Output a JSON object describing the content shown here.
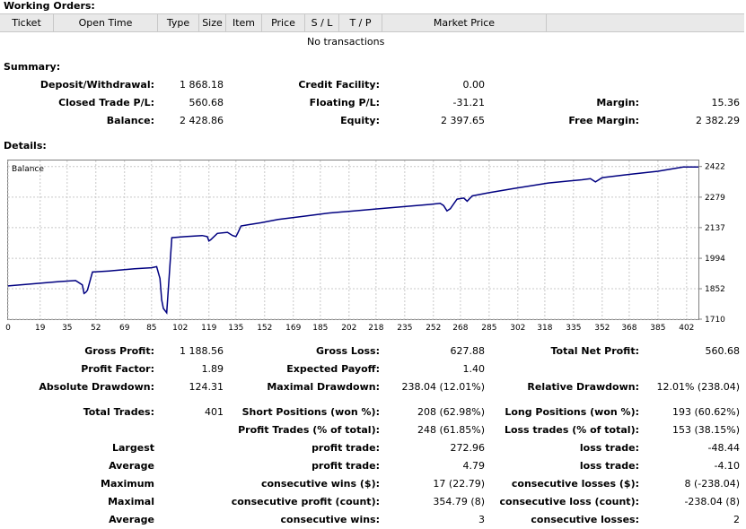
{
  "working_orders": {
    "title": "Working Orders:",
    "columns": [
      "Ticket",
      "Open Time",
      "Type",
      "Size",
      "Item",
      "Price",
      "S / L",
      "T / P",
      "Market Price"
    ],
    "empty_text": "No transactions"
  },
  "summary": {
    "title": "Summary:",
    "deposit_label": "Deposit/Withdrawal:",
    "deposit_value": "1 868.18",
    "credit_label": "Credit Facility:",
    "credit_value": "0.00",
    "closed_pl_label": "Closed Trade P/L:",
    "closed_pl_value": "560.68",
    "floating_label": "Floating P/L:",
    "floating_value": "-31.21",
    "margin_label": "Margin:",
    "margin_value": "15.36",
    "balance_label": "Balance:",
    "balance_value": "2 428.86",
    "equity_label": "Equity:",
    "equity_value": "2 397.65",
    "free_margin_label": "Free Margin:",
    "free_margin_value": "2 382.29"
  },
  "details": {
    "title": "Details:"
  },
  "chart_data": {
    "type": "line",
    "legend": "Balance",
    "x_ticks": [
      "0",
      "19",
      "35",
      "52",
      "69",
      "85",
      "102",
      "119",
      "135",
      "152",
      "169",
      "185",
      "202",
      "218",
      "235",
      "252",
      "268",
      "285",
      "302",
      "318",
      "335",
      "352",
      "368",
      "385",
      "402"
    ],
    "y_ticks": [
      "2422",
      "2279",
      "2137",
      "1994",
      "1852",
      "1710"
    ],
    "xlim": [
      0,
      409
    ],
    "ylim": [
      1710,
      2450
    ],
    "grid": true,
    "series": [
      {
        "name": "Balance",
        "color": "#000080",
        "x": [
          0,
          15,
          30,
          40,
          44,
          45,
          46,
          47,
          50,
          60,
          75,
          85,
          88,
          90,
          91,
          92,
          94,
          97,
          105,
          115,
          118,
          119,
          120,
          124,
          130,
          133,
          135,
          136,
          138,
          142,
          150,
          160,
          175,
          190,
          205,
          220,
          235,
          250,
          256,
          258,
          260,
          262,
          266,
          270,
          272,
          275,
          285,
          300,
          320,
          340,
          345,
          348,
          352,
          368,
          385,
          400,
          409
        ],
        "y": [
          1865,
          1875,
          1885,
          1890,
          1870,
          1830,
          1835,
          1845,
          1930,
          1935,
          1945,
          1950,
          1955,
          1900,
          1800,
          1760,
          1740,
          2090,
          2095,
          2100,
          2095,
          2075,
          2080,
          2110,
          2115,
          2100,
          2095,
          2110,
          2145,
          2150,
          2160,
          2175,
          2190,
          2205,
          2215,
          2225,
          2235,
          2245,
          2250,
          2240,
          2215,
          2225,
          2270,
          2275,
          2260,
          2285,
          2300,
          2320,
          2345,
          2360,
          2365,
          2350,
          2370,
          2385,
          2400,
          2420,
          2420
        ]
      }
    ]
  },
  "stats": {
    "gross_profit_label": "Gross Profit:",
    "gross_profit_value": "1 188.56",
    "gross_loss_label": "Gross Loss:",
    "gross_loss_value": "627.88",
    "total_net_label": "Total Net Profit:",
    "total_net_value": "560.68",
    "profit_factor_label": "Profit Factor:",
    "profit_factor_value": "1.89",
    "expected_payoff_label": "Expected Payoff:",
    "expected_payoff_value": "1.40",
    "abs_drawdown_label": "Absolute Drawdown:",
    "abs_drawdown_value": "124.31",
    "max_drawdown_label": "Maximal Drawdown:",
    "max_drawdown_value": "238.04 (12.01%)",
    "rel_drawdown_label": "Relative Drawdown:",
    "rel_drawdown_value": "12.01% (238.04)",
    "total_trades_label": "Total Trades:",
    "total_trades_value": "401",
    "short_label": "Short Positions (won %):",
    "short_value": "208 (62.98%)",
    "long_label": "Long Positions (won %):",
    "long_value": "193 (60.62%)",
    "profit_trades_label": "Profit Trades (% of total):",
    "profit_trades_value": "248 (61.85%)",
    "loss_trades_label": "Loss trades (% of total):",
    "loss_trades_value": "153 (38.15%)",
    "largest_label": "Largest",
    "largest_profit_label": "profit trade:",
    "largest_profit_value": "272.96",
    "largest_loss_label": "loss trade:",
    "largest_loss_value": "-48.44",
    "average_label": "Average",
    "average_profit_label": "profit trade:",
    "average_profit_value": "4.79",
    "average_loss_label": "loss trade:",
    "average_loss_value": "-4.10",
    "maximum_label": "Maximum",
    "max_cons_wins_label": "consecutive wins ($):",
    "max_cons_wins_value": "17 (22.79)",
    "max_cons_losses_label": "consecutive losses ($):",
    "max_cons_losses_value": "8 (-238.04)",
    "maximal_label": "Maximal",
    "maximal_profit_label": "consecutive profit (count):",
    "maximal_profit_value": "354.79 (8)",
    "maximal_loss_label": "consecutive loss (count):",
    "maximal_loss_value": "-238.04 (8)",
    "average2_label": "Average",
    "avg_cons_wins_label": "consecutive wins:",
    "avg_cons_wins_value": "3",
    "avg_cons_losses_label": "consecutive losses:",
    "avg_cons_losses_value": "2"
  }
}
